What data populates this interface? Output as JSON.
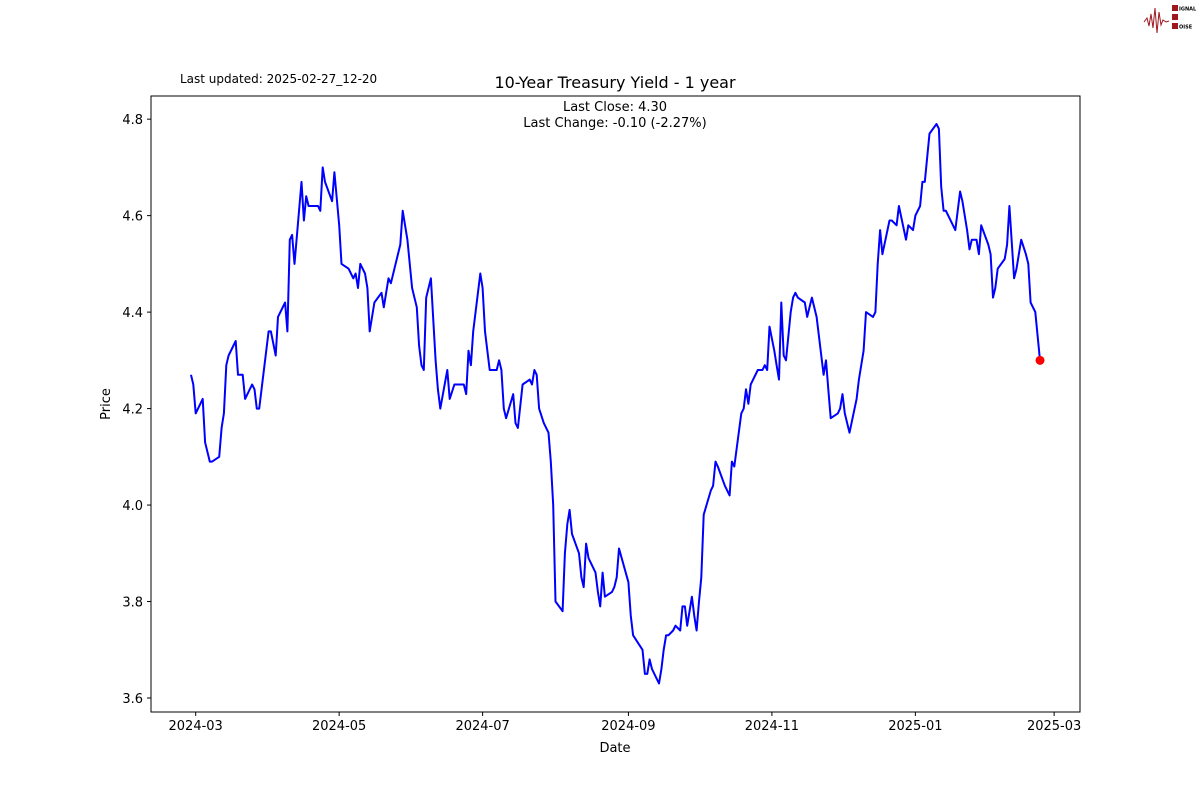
{
  "logo": {
    "text": "SIGNAL 2 NOISE",
    "color": "#a0161e"
  },
  "last_updated": "Last updated: 2025-02-27_12-20",
  "chart_data": {
    "type": "line",
    "title": "10-Year Treasury Yield - 1 year",
    "annotations": [
      "Last Close: 4.30",
      "Last Change: -0.10 (-2.27%)"
    ],
    "xlabel": "Date",
    "ylabel": "Price",
    "xlim": [
      "2024-02-11",
      "2025-03-12"
    ],
    "ylim": [
      3.571,
      4.848
    ],
    "grid": false,
    "x_ticks": [
      "2024-03-01",
      "2024-05-01",
      "2024-07-01",
      "2024-09-01",
      "2024-11-01",
      "2025-01-01",
      "2025-03-01"
    ],
    "x_tick_labels": [
      "2024-03",
      "2024-05",
      "2024-07",
      "2024-09",
      "2024-11",
      "2025-01",
      "2025-03"
    ],
    "y_ticks": [
      3.6,
      3.8,
      4.0,
      4.2,
      4.4,
      4.6,
      4.8
    ],
    "y_tick_labels": [
      "3.6",
      "3.8",
      "4.0",
      "4.2",
      "4.4",
      "4.6",
      "4.8"
    ],
    "line_color": "#0000ff",
    "marker_color": "#ff0000",
    "last_point": {
      "date": "2025-02-23",
      "value": 4.3
    },
    "dates": [
      "2024-02-28",
      "2024-02-29",
      "2024-03-01",
      "2024-03-04",
      "2024-03-05",
      "2024-03-07",
      "2024-03-08",
      "2024-03-11",
      "2024-03-12",
      "2024-03-13",
      "2024-03-14",
      "2024-03-15",
      "2024-03-18",
      "2024-03-19",
      "2024-03-21",
      "2024-03-22",
      "2024-03-25",
      "2024-03-26",
      "2024-03-27",
      "2024-03-28",
      "2024-04-01",
      "2024-04-02",
      "2024-04-04",
      "2024-04-05",
      "2024-04-08",
      "2024-04-09",
      "2024-04-10",
      "2024-04-11",
      "2024-04-12",
      "2024-04-15",
      "2024-04-16",
      "2024-04-17",
      "2024-04-18",
      "2024-04-22",
      "2024-04-23",
      "2024-04-24",
      "2024-04-25",
      "2024-04-28",
      "2024-04-29",
      "2024-05-01",
      "2024-05-02",
      "2024-05-05",
      "2024-05-07",
      "2024-05-08",
      "2024-05-09",
      "2024-05-10",
      "2024-05-12",
      "2024-05-13",
      "2024-05-14",
      "2024-05-16",
      "2024-05-19",
      "2024-05-20",
      "2024-05-22",
      "2024-05-23",
      "2024-05-27",
      "2024-05-28",
      "2024-05-30",
      "2024-06-01",
      "2024-06-03",
      "2024-06-04",
      "2024-06-05",
      "2024-06-06",
      "2024-06-07",
      "2024-06-09",
      "2024-06-11",
      "2024-06-12",
      "2024-06-13",
      "2024-06-16",
      "2024-06-17",
      "2024-06-19",
      "2024-06-23",
      "2024-06-24",
      "2024-06-25",
      "2024-06-26",
      "2024-06-27",
      "2024-06-30",
      "2024-07-01",
      "2024-07-02",
      "2024-07-04",
      "2024-07-07",
      "2024-07-08",
      "2024-07-09",
      "2024-07-10",
      "2024-07-11",
      "2024-07-14",
      "2024-07-15",
      "2024-07-16",
      "2024-07-18",
      "2024-07-21",
      "2024-07-22",
      "2024-07-23",
      "2024-07-24",
      "2024-07-25",
      "2024-07-27",
      "2024-07-29",
      "2024-07-30",
      "2024-07-31",
      "2024-08-01",
      "2024-08-04",
      "2024-08-05",
      "2024-08-06",
      "2024-08-07",
      "2024-08-08",
      "2024-08-11",
      "2024-08-12",
      "2024-08-13",
      "2024-08-14",
      "2024-08-15",
      "2024-08-18",
      "2024-08-19",
      "2024-08-20",
      "2024-08-21",
      "2024-08-22",
      "2024-08-25",
      "2024-08-26",
      "2024-08-27",
      "2024-08-28",
      "2024-09-01",
      "2024-09-02",
      "2024-09-03",
      "2024-09-07",
      "2024-09-08",
      "2024-09-09",
      "2024-09-10",
      "2024-09-11",
      "2024-09-14",
      "2024-09-15",
      "2024-09-16",
      "2024-09-17",
      "2024-09-18",
      "2024-09-20",
      "2024-09-21",
      "2024-09-23",
      "2024-09-24",
      "2024-09-25",
      "2024-09-26",
      "2024-09-28",
      "2024-09-29",
      "2024-09-30",
      "2024-10-01",
      "2024-10-02",
      "2024-10-03",
      "2024-10-06",
      "2024-10-07",
      "2024-10-08",
      "2024-10-09",
      "2024-10-12",
      "2024-10-14",
      "2024-10-15",
      "2024-10-16",
      "2024-10-19",
      "2024-10-20",
      "2024-10-21",
      "2024-10-22",
      "2024-10-23",
      "2024-10-26",
      "2024-10-28",
      "2024-10-29",
      "2024-10-30",
      "2024-10-31",
      "2024-11-02",
      "2024-11-03",
      "2024-11-04",
      "2024-11-05",
      "2024-11-06",
      "2024-11-07",
      "2024-11-09",
      "2024-11-10",
      "2024-11-11",
      "2024-11-12",
      "2024-11-15",
      "2024-11-16",
      "2024-11-17",
      "2024-11-18",
      "2024-11-20",
      "2024-11-23",
      "2024-11-24",
      "2024-11-25",
      "2024-11-26",
      "2024-11-29",
      "2024-11-30",
      "2024-12-01",
      "2024-12-02",
      "2024-12-04",
      "2024-12-07",
      "2024-12-08",
      "2024-12-10",
      "2024-12-11",
      "2024-12-14",
      "2024-12-15",
      "2024-12-16",
      "2024-12-17",
      "2024-12-18",
      "2024-12-21",
      "2024-12-22",
      "2024-12-24",
      "2024-12-25",
      "2024-12-28",
      "2024-12-29",
      "2024-12-31",
      "2025-01-01",
      "2025-01-03",
      "2025-01-04",
      "2025-01-05",
      "2025-01-07",
      "2025-01-10",
      "2025-01-11",
      "2025-01-12",
      "2025-01-13",
      "2025-01-14",
      "2025-01-18",
      "2025-01-20",
      "2025-01-21",
      "2025-01-23",
      "2025-01-24",
      "2025-01-25",
      "2025-01-27",
      "2025-01-28",
      "2025-01-29",
      "2025-02-01",
      "2025-02-02",
      "2025-02-03",
      "2025-02-04",
      "2025-02-05",
      "2025-02-08",
      "2025-02-09",
      "2025-02-10",
      "2025-02-12",
      "2025-02-13",
      "2025-02-15",
      "2025-02-17",
      "2025-02-18",
      "2025-02-19",
      "2025-02-21",
      "2025-02-23"
    ],
    "values": [
      4.27,
      4.25,
      4.19,
      4.22,
      4.13,
      4.09,
      4.09,
      4.1,
      4.16,
      4.19,
      4.29,
      4.31,
      4.34,
      4.27,
      4.27,
      4.22,
      4.25,
      4.24,
      4.2,
      4.2,
      4.36,
      4.36,
      4.31,
      4.39,
      4.42,
      4.36,
      4.55,
      4.56,
      4.5,
      4.67,
      4.59,
      4.64,
      4.62,
      4.62,
      4.61,
      4.7,
      4.67,
      4.63,
      4.69,
      4.58,
      4.5,
      4.49,
      4.47,
      4.48,
      4.45,
      4.5,
      4.48,
      4.45,
      4.36,
      4.42,
      4.44,
      4.41,
      4.47,
      4.46,
      4.54,
      4.61,
      4.55,
      4.45,
      4.41,
      4.33,
      4.29,
      4.28,
      4.43,
      4.47,
      4.3,
      4.24,
      4.2,
      4.28,
      4.22,
      4.25,
      4.25,
      4.23,
      4.32,
      4.29,
      4.36,
      4.48,
      4.45,
      4.36,
      4.28,
      4.28,
      4.3,
      4.28,
      4.2,
      4.18,
      4.23,
      4.17,
      4.16,
      4.25,
      4.26,
      4.25,
      4.28,
      4.27,
      4.2,
      4.17,
      4.15,
      4.09,
      4.0,
      3.8,
      3.78,
      3.9,
      3.96,
      3.99,
      3.94,
      3.9,
      3.85,
      3.83,
      3.92,
      3.89,
      3.86,
      3.82,
      3.79,
      3.86,
      3.81,
      3.82,
      3.83,
      3.85,
      3.91,
      3.84,
      3.77,
      3.73,
      3.7,
      3.65,
      3.65,
      3.68,
      3.66,
      3.63,
      3.66,
      3.7,
      3.73,
      3.73,
      3.74,
      3.75,
      3.74,
      3.79,
      3.79,
      3.75,
      3.81,
      3.77,
      3.74,
      3.8,
      3.85,
      3.98,
      4.03,
      4.04,
      4.09,
      4.08,
      4.04,
      4.02,
      4.09,
      4.08,
      4.19,
      4.2,
      4.24,
      4.21,
      4.25,
      4.28,
      4.28,
      4.29,
      4.28,
      4.37,
      4.32,
      4.29,
      4.26,
      4.42,
      4.31,
      4.3,
      4.4,
      4.43,
      4.44,
      4.43,
      4.42,
      4.39,
      4.41,
      4.43,
      4.39,
      4.27,
      4.3,
      4.24,
      4.18,
      4.19,
      4.2,
      4.23,
      4.19,
      4.15,
      4.22,
      4.26,
      4.32,
      4.4,
      4.39,
      4.4,
      4.5,
      4.57,
      4.52,
      4.59,
      4.59,
      4.58,
      4.62,
      4.55,
      4.58,
      4.57,
      4.6,
      4.62,
      4.67,
      4.67,
      4.77,
      4.79,
      4.78,
      4.66,
      4.61,
      4.61,
      4.57,
      4.65,
      4.63,
      4.57,
      4.53,
      4.55,
      4.55,
      4.52,
      4.58,
      4.54,
      4.52,
      4.43,
      4.45,
      4.49,
      4.51,
      4.54,
      4.62,
      4.47,
      4.49,
      4.55,
      4.52,
      4.5,
      4.42,
      4.4,
      4.3
    ]
  }
}
